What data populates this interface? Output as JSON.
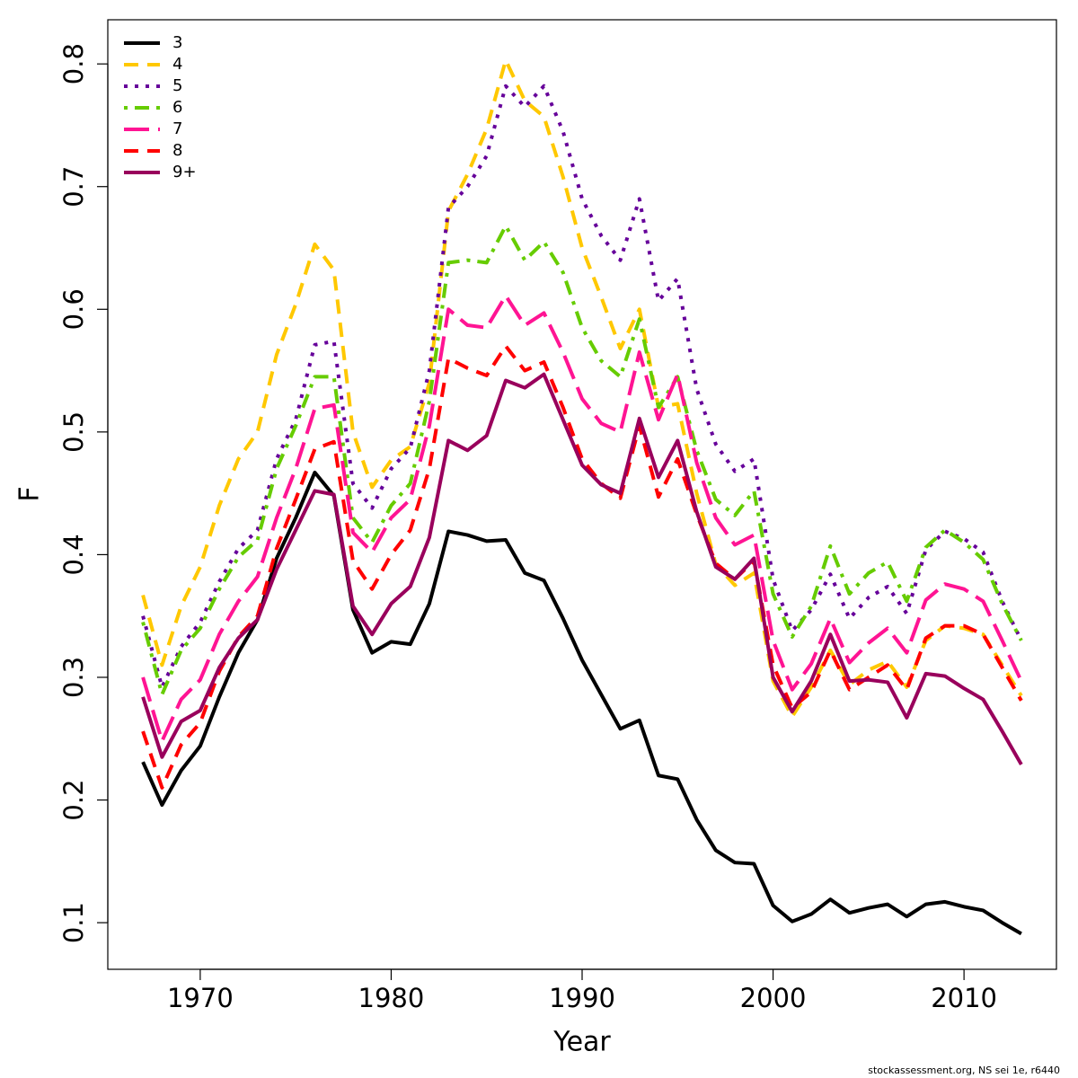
{
  "chart_data": {
    "type": "line",
    "xlabel": "Year",
    "ylabel": "F",
    "footer": "stockassessment.org, NS sei 1e, r6440",
    "x": [
      1967,
      1968,
      1969,
      1970,
      1971,
      1972,
      1973,
      1974,
      1975,
      1976,
      1977,
      1978,
      1979,
      1980,
      1981,
      1982,
      1983,
      1984,
      1985,
      1986,
      1987,
      1988,
      1989,
      1990,
      1991,
      1992,
      1993,
      1994,
      1995,
      1996,
      1997,
      1998,
      1999,
      2000,
      2001,
      2002,
      2003,
      2004,
      2005,
      2006,
      2007,
      2008,
      2009,
      2010,
      2011,
      2012,
      2013
    ],
    "xlim": [
      1965.16,
      2014.84
    ],
    "xticks": [
      1970,
      1980,
      1990,
      2000,
      2010
    ],
    "ylim": [
      0.062,
      0.836
    ],
    "yticks": [
      0.1,
      0.2,
      0.3,
      0.4,
      0.5,
      0.6,
      0.7,
      0.8
    ],
    "legend": "top-left",
    "series": [
      {
        "name": "3",
        "color": "#000000",
        "dash": "solid",
        "values": [
          0.231,
          0.196,
          0.224,
          0.244,
          0.284,
          0.32,
          0.347,
          0.397,
          0.43,
          0.467,
          0.448,
          0.355,
          0.32,
          0.329,
          0.327,
          0.36,
          0.419,
          0.416,
          0.411,
          0.412,
          0.385,
          0.379,
          0.348,
          0.314,
          0.286,
          0.258,
          0.265,
          0.22,
          0.217,
          0.184,
          0.159,
          0.149,
          0.148,
          0.114,
          0.101,
          0.107,
          0.119,
          0.108,
          0.112,
          0.115,
          0.105,
          0.115,
          0.117,
          0.113,
          0.11,
          0.1,
          0.091
        ]
      },
      {
        "name": "4",
        "color": "#ffc800",
        "dash": "dashed",
        "values": [
          0.367,
          0.31,
          0.358,
          0.39,
          0.44,
          0.478,
          0.5,
          0.563,
          0.604,
          0.653,
          0.632,
          0.5,
          0.455,
          0.477,
          0.488,
          0.54,
          0.68,
          0.71,
          0.747,
          0.803,
          0.77,
          0.757,
          0.708,
          0.65,
          0.61,
          0.568,
          0.6,
          0.52,
          0.523,
          0.45,
          0.392,
          0.375,
          0.385,
          0.297,
          0.268,
          0.292,
          0.322,
          0.294,
          0.306,
          0.313,
          0.292,
          0.33,
          0.342,
          0.34,
          0.335,
          0.31,
          0.285
        ]
      },
      {
        "name": "5",
        "color": "#66009a",
        "dash": "dotted",
        "values": [
          0.35,
          0.292,
          0.325,
          0.345,
          0.378,
          0.405,
          0.42,
          0.478,
          0.51,
          0.571,
          0.574,
          0.458,
          0.438,
          0.47,
          0.487,
          0.55,
          0.683,
          0.7,
          0.725,
          0.782,
          0.765,
          0.782,
          0.745,
          0.69,
          0.66,
          0.64,
          0.69,
          0.607,
          0.625,
          0.535,
          0.49,
          0.468,
          0.478,
          0.38,
          0.338,
          0.355,
          0.384,
          0.348,
          0.365,
          0.374,
          0.352,
          0.404,
          0.419,
          0.413,
          0.402,
          0.362,
          0.33
        ]
      },
      {
        "name": "6",
        "color": "#66cc00",
        "dash": "dotdash",
        "values": [
          0.345,
          0.286,
          0.322,
          0.34,
          0.372,
          0.398,
          0.412,
          0.47,
          0.505,
          0.545,
          0.545,
          0.43,
          0.41,
          0.44,
          0.458,
          0.525,
          0.638,
          0.64,
          0.638,
          0.668,
          0.64,
          0.655,
          0.63,
          0.585,
          0.558,
          0.545,
          0.592,
          0.52,
          0.545,
          0.485,
          0.445,
          0.432,
          0.452,
          0.368,
          0.333,
          0.358,
          0.407,
          0.368,
          0.385,
          0.394,
          0.362,
          0.406,
          0.42,
          0.41,
          0.396,
          0.36,
          0.33
        ]
      },
      {
        "name": "7",
        "color": "#ff1493",
        "dash": "longdash",
        "values": [
          0.3,
          0.248,
          0.282,
          0.298,
          0.335,
          0.362,
          0.382,
          0.43,
          0.47,
          0.519,
          0.522,
          0.418,
          0.402,
          0.43,
          0.445,
          0.505,
          0.6,
          0.587,
          0.585,
          0.611,
          0.587,
          0.597,
          0.565,
          0.527,
          0.507,
          0.5,
          0.565,
          0.51,
          0.547,
          0.475,
          0.43,
          0.408,
          0.416,
          0.33,
          0.29,
          0.311,
          0.348,
          0.312,
          0.328,
          0.34,
          0.32,
          0.363,
          0.376,
          0.372,
          0.362,
          0.33,
          0.297
        ]
      },
      {
        "name": "8",
        "color": "#ff0000",
        "dash": "dashed",
        "values": [
          0.256,
          0.21,
          0.245,
          0.263,
          0.305,
          0.333,
          0.35,
          0.405,
          0.445,
          0.486,
          0.492,
          0.395,
          0.372,
          0.4,
          0.42,
          0.47,
          0.56,
          0.552,
          0.546,
          0.57,
          0.55,
          0.557,
          0.52,
          0.478,
          0.458,
          0.446,
          0.505,
          0.447,
          0.478,
          0.433,
          0.393,
          0.38,
          0.395,
          0.31,
          0.275,
          0.288,
          0.322,
          0.29,
          0.3,
          0.31,
          0.29,
          0.332,
          0.342,
          0.342,
          0.335,
          0.308,
          0.281
        ]
      },
      {
        "name": "9+",
        "color": "#99005c",
        "dash": "solid",
        "values": [
          0.284,
          0.235,
          0.264,
          0.273,
          0.308,
          0.332,
          0.347,
          0.388,
          0.42,
          0.452,
          0.449,
          0.358,
          0.335,
          0.36,
          0.374,
          0.414,
          0.493,
          0.485,
          0.497,
          0.542,
          0.536,
          0.547,
          0.51,
          0.473,
          0.457,
          0.45,
          0.511,
          0.463,
          0.493,
          0.435,
          0.39,
          0.38,
          0.397,
          0.3,
          0.272,
          0.297,
          0.335,
          0.297,
          0.298,
          0.296,
          0.267,
          0.303,
          0.301,
          0.291,
          0.282,
          0.256,
          0.229
        ]
      }
    ]
  }
}
